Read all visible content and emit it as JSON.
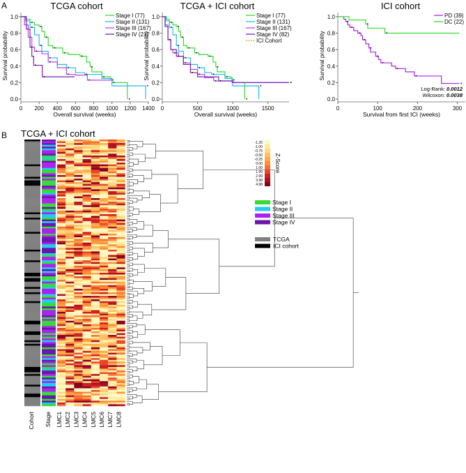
{
  "panel_labels": {
    "a": "A",
    "b": "B"
  },
  "chart_data": [
    {
      "type": "line",
      "subtype": "kaplan-meier",
      "title": "TCGA cohort",
      "xlabel": "Overall survival (weeks)",
      "ylabel": "Survival probability",
      "xlim": [
        0,
        1400
      ],
      "ylim": [
        0,
        1.05
      ],
      "xticks": [
        "0",
        "200",
        "400",
        "600",
        "800",
        "1000",
        "1200",
        "1400"
      ],
      "xtickvals": [
        0,
        200,
        400,
        600,
        800,
        1000,
        1200,
        1400
      ],
      "yticks": [
        "0.0",
        "0.2",
        "0.4",
        "0.6",
        "0.8",
        "1.0"
      ],
      "legend_position": "top-right",
      "series": [
        {
          "name": "Stage I (77)",
          "color": "#33dd33",
          "points": [
            [
              0,
              1
            ],
            [
              60,
              0.97
            ],
            [
              100,
              0.93
            ],
            [
              150,
              0.9
            ],
            [
              200,
              0.88
            ],
            [
              230,
              0.82
            ],
            [
              260,
              0.75
            ],
            [
              300,
              0.65
            ],
            [
              350,
              0.62
            ],
            [
              450,
              0.62
            ],
            [
              460,
              0.56
            ],
            [
              520,
              0.54
            ],
            [
              650,
              0.52
            ],
            [
              720,
              0.45
            ],
            [
              760,
              0.39
            ],
            [
              780,
              0.33
            ],
            [
              890,
              0.27
            ],
            [
              980,
              0.25
            ],
            [
              1000,
              0.2
            ],
            [
              1170,
              0.2
            ],
            [
              1170,
              0
            ]
          ]
        },
        {
          "name": "Stage II (131)",
          "color": "#22bbee",
          "points": [
            [
              0,
              1
            ],
            [
              50,
              0.95
            ],
            [
              100,
              0.87
            ],
            [
              150,
              0.78
            ],
            [
              200,
              0.65
            ],
            [
              230,
              0.58
            ],
            [
              300,
              0.5
            ],
            [
              400,
              0.42
            ],
            [
              500,
              0.38
            ],
            [
              600,
              0.32
            ],
            [
              700,
              0.3
            ],
            [
              890,
              0.25
            ],
            [
              990,
              0.23
            ],
            [
              1000,
              0.16
            ],
            [
              1370,
              0.16
            ],
            [
              1370,
              0
            ]
          ]
        },
        {
          "name": "Stage III (167)",
          "color": "#bb44ee",
          "points": [
            [
              0,
              1
            ],
            [
              40,
              0.9
            ],
            [
              80,
              0.75
            ],
            [
              120,
              0.63
            ],
            [
              150,
              0.58
            ],
            [
              230,
              0.55
            ],
            [
              300,
              0.45
            ],
            [
              400,
              0.38
            ],
            [
              500,
              0.3
            ],
            [
              600,
              0.29
            ],
            [
              730,
              0.23
            ],
            [
              990,
              0.23
            ]
          ]
        },
        {
          "name": "Stage IV (21)",
          "color": "#7722bb",
          "points": [
            [
              0,
              1
            ],
            [
              60,
              0.85
            ],
            [
              100,
              0.63
            ],
            [
              120,
              0.52
            ],
            [
              140,
              0.41
            ],
            [
              235,
              0.41
            ],
            [
              235,
              0.27
            ],
            [
              590,
              0.27
            ]
          ]
        }
      ]
    },
    {
      "type": "line",
      "subtype": "kaplan-meier",
      "title": "TCGA + ICI cohort",
      "xlabel": "Overall survival (weeks)",
      "ylabel": "Survival probability",
      "xlim": [
        0,
        1800
      ],
      "ylim": [
        0,
        1.05
      ],
      "xticks": [
        "0",
        "500",
        "1000",
        "1500"
      ],
      "xtickvals": [
        0,
        500,
        1000,
        1500
      ],
      "yticks": [
        "0.0",
        "0.2",
        "0.4",
        "0.6",
        "0.8",
        "1.0"
      ],
      "legend_position": "top-right",
      "series": [
        {
          "name": "Stage I (77)",
          "color": "#33dd33",
          "points": [
            [
              0,
              1
            ],
            [
              60,
              0.97
            ],
            [
              100,
              0.93
            ],
            [
              150,
              0.9
            ],
            [
              200,
              0.88
            ],
            [
              230,
              0.82
            ],
            [
              260,
              0.75
            ],
            [
              300,
              0.65
            ],
            [
              350,
              0.62
            ],
            [
              450,
              0.62
            ],
            [
              460,
              0.56
            ],
            [
              520,
              0.54
            ],
            [
              650,
              0.52
            ],
            [
              720,
              0.45
            ],
            [
              760,
              0.39
            ],
            [
              780,
              0.33
            ],
            [
              890,
              0.27
            ],
            [
              980,
              0.25
            ],
            [
              1000,
              0.2
            ],
            [
              1170,
              0.2
            ],
            [
              1170,
              0
            ]
          ]
        },
        {
          "name": "Stage II (131)",
          "color": "#22bbee",
          "points": [
            [
              0,
              1
            ],
            [
              50,
              0.95
            ],
            [
              100,
              0.87
            ],
            [
              150,
              0.78
            ],
            [
              200,
              0.65
            ],
            [
              230,
              0.58
            ],
            [
              300,
              0.5
            ],
            [
              400,
              0.42
            ],
            [
              500,
              0.38
            ],
            [
              600,
              0.32
            ],
            [
              700,
              0.3
            ],
            [
              890,
              0.25
            ],
            [
              990,
              0.23
            ],
            [
              1000,
              0.16
            ],
            [
              1370,
              0.16
            ],
            [
              1370,
              0
            ]
          ]
        },
        {
          "name": "Stage III (167)",
          "color": "#bb44ee",
          "points": [
            [
              0,
              1
            ],
            [
              40,
              0.9
            ],
            [
              80,
              0.72
            ],
            [
              120,
              0.6
            ],
            [
              150,
              0.56
            ],
            [
              230,
              0.52
            ],
            [
              300,
              0.44
            ],
            [
              400,
              0.36
            ],
            [
              500,
              0.3
            ],
            [
              600,
              0.26
            ],
            [
              730,
              0.22
            ],
            [
              990,
              0.2
            ],
            [
              1800,
              0.2
            ]
          ]
        },
        {
          "name": "Stage IV (82)",
          "color": "#7722bb",
          "points": [
            [
              0,
              1
            ],
            [
              40,
              0.88
            ],
            [
              80,
              0.72
            ],
            [
              120,
              0.6
            ],
            [
              200,
              0.52
            ],
            [
              300,
              0.42
            ],
            [
              400,
              0.32
            ],
            [
              500,
              0.27
            ],
            [
              800,
              0.22
            ],
            [
              1000,
              0.2
            ],
            [
              1800,
              0.2
            ]
          ]
        },
        {
          "name": "ICI Cohort",
          "color": "#ee9922",
          "dashed": true,
          "points": []
        }
      ]
    },
    {
      "type": "line",
      "subtype": "kaplan-meier",
      "title": "ICI cohort",
      "xlabel": "Survival from first ICI (weeks)",
      "ylabel": "Survival probability",
      "xlim": [
        0,
        320
      ],
      "ylim": [
        0,
        1.05
      ],
      "xticks": [
        "0",
        "100",
        "200",
        "300"
      ],
      "xtickvals": [
        0,
        100,
        200,
        300
      ],
      "yticks": [
        "0.0",
        "0.2",
        "0.4",
        "0.6",
        "0.8",
        "1.0"
      ],
      "legend_position": "top-right",
      "annotations": [
        {
          "label": "Log-Rank:",
          "value": "0.0012"
        },
        {
          "label": "Wilcoxon:",
          "value": "0.0038"
        }
      ],
      "series": [
        {
          "name": "PD (39)",
          "color": "#aa22ee",
          "points": [
            [
              0,
              1
            ],
            [
              15,
              0.97
            ],
            [
              20,
              0.94
            ],
            [
              25,
              0.9
            ],
            [
              30,
              0.87
            ],
            [
              40,
              0.83
            ],
            [
              50,
              0.8
            ],
            [
              58,
              0.77
            ],
            [
              62,
              0.72
            ],
            [
              70,
              0.67
            ],
            [
              78,
              0.62
            ],
            [
              82,
              0.57
            ],
            [
              95,
              0.52
            ],
            [
              102,
              0.48
            ],
            [
              108,
              0.44
            ],
            [
              135,
              0.4
            ],
            [
              145,
              0.37
            ],
            [
              170,
              0.33
            ],
            [
              192,
              0.28
            ],
            [
              260,
              0.19
            ],
            [
              305,
              0.19
            ]
          ]
        },
        {
          "name": "DC (22)",
          "color": "#33dd33",
          "points": [
            [
              0,
              1
            ],
            [
              28,
              0.96
            ],
            [
              70,
              0.91
            ],
            [
              75,
              0.86
            ],
            [
              118,
              0.8
            ],
            [
              305,
              0.8
            ]
          ]
        }
      ]
    },
    {
      "type": "heatmap",
      "title": "TCGA + ICI cohort",
      "columns": [
        "Cohort",
        "Stage",
        "LMC1",
        "LMC2",
        "LMC3",
        "LMC4",
        "LMC5",
        "LMC6",
        "LMC7",
        "LMC8"
      ],
      "colorbar_title": "Z-Score",
      "colorbar_ticks": [
        "-1.25",
        "-1.00",
        "-0.75",
        "-0.50",
        "-0.25",
        "0.00",
        "1.00",
        "1.99",
        "2.99",
        "3.98",
        "4.98"
      ],
      "colorbar_colors": [
        "#fff7c0",
        "#ffeaa0",
        "#ffd880",
        "#ffc060",
        "#ffa848",
        "#ff9038",
        "#f87030",
        "#e84828",
        "#d02020",
        "#b01020",
        "#8a0020"
      ],
      "stage_legend": [
        {
          "label": "Stage I",
          "color": "#33dd33"
        },
        {
          "label": "Stage II",
          "color": "#22ccee"
        },
        {
          "label": "Stage III",
          "color": "#aa22ee"
        },
        {
          "label": "Stage IV",
          "color": "#6a14aa"
        }
      ],
      "cohort_legend": [
        {
          "label": "TCGA",
          "color": "#808080"
        },
        {
          "label": "ICI cohort",
          "color": "#000000"
        }
      ]
    }
  ]
}
